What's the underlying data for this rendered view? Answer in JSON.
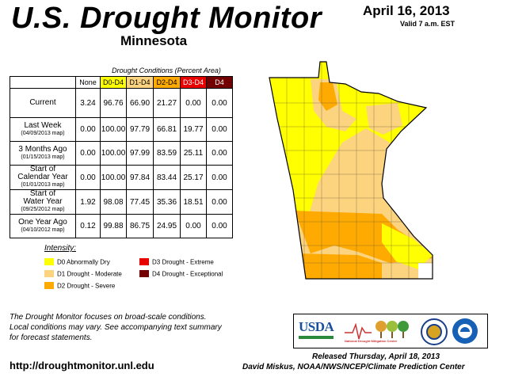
{
  "header": {
    "title": "U.S. Drought Monitor",
    "region": "Minnesota",
    "date": "April 16, 2013",
    "valid": "Valid 7 a.m. EST"
  },
  "table": {
    "caption": "Drought Conditions (Percent Area)",
    "columns": [
      "None",
      "D0-D4",
      "D1-D4",
      "D2-D4",
      "D3-D4",
      "D4"
    ],
    "rows": [
      {
        "label": "Current",
        "sub": "",
        "values": [
          "3.24",
          "96.76",
          "66.90",
          "21.27",
          "0.00",
          "0.00"
        ]
      },
      {
        "label": "Last Week",
        "sub": "(04/09/2013 map)",
        "values": [
          "0.00",
          "100.00",
          "97.79",
          "66.81",
          "19.77",
          "0.00"
        ]
      },
      {
        "label": "3 Months Ago",
        "sub": "(01/15/2013 map)",
        "values": [
          "0.00",
          "100.00",
          "97.99",
          "83.59",
          "25.11",
          "0.00"
        ]
      },
      {
        "label": "Start of Calendar Year",
        "label1": "Start of",
        "label2": "Calendar Year",
        "sub": "(01/01/2013 map)",
        "values": [
          "0.00",
          "100.00",
          "97.84",
          "83.44",
          "25.17",
          "0.00"
        ]
      },
      {
        "label": "Start of Water Year",
        "label1": "Start of",
        "label2": "Water Year",
        "sub": "(09/25/2012 map)",
        "values": [
          "1.92",
          "98.08",
          "77.45",
          "35.36",
          "18.51",
          "0.00"
        ]
      },
      {
        "label": "One Year Ago",
        "sub": "(04/10/2012 map)",
        "values": [
          "0.12",
          "99.88",
          "86.75",
          "24.95",
          "0.00",
          "0.00"
        ]
      }
    ]
  },
  "legend": {
    "title": "Intensity:",
    "items": [
      {
        "label": "D0 Abnormally Dry",
        "color": "#ffff00"
      },
      {
        "label": "D1 Drought - Moderate",
        "color": "#fcd37f"
      },
      {
        "label": "D2 Drought - Severe",
        "color": "#ffaa00"
      },
      {
        "label": "D3 Drought - Extreme",
        "color": "#e60000"
      },
      {
        "label": "D4 Drought - Exceptional",
        "color": "#730000"
      }
    ]
  },
  "note": {
    "line1": "The Drought Monitor focuses on broad-scale conditions.",
    "line2": "Local conditions may vary. See accompanying text summary",
    "line3": "for forecast statements."
  },
  "footer": {
    "url": "http://droughtmonitor.unl.edu",
    "released": "Released Thursday, April 18, 2013",
    "credit": "David Miskus, NOAA/NWS/NCEP/Climate Prediction Center"
  },
  "logos": {
    "usda": "USDA",
    "ndmc": "National Drought Mitigation Center"
  }
}
